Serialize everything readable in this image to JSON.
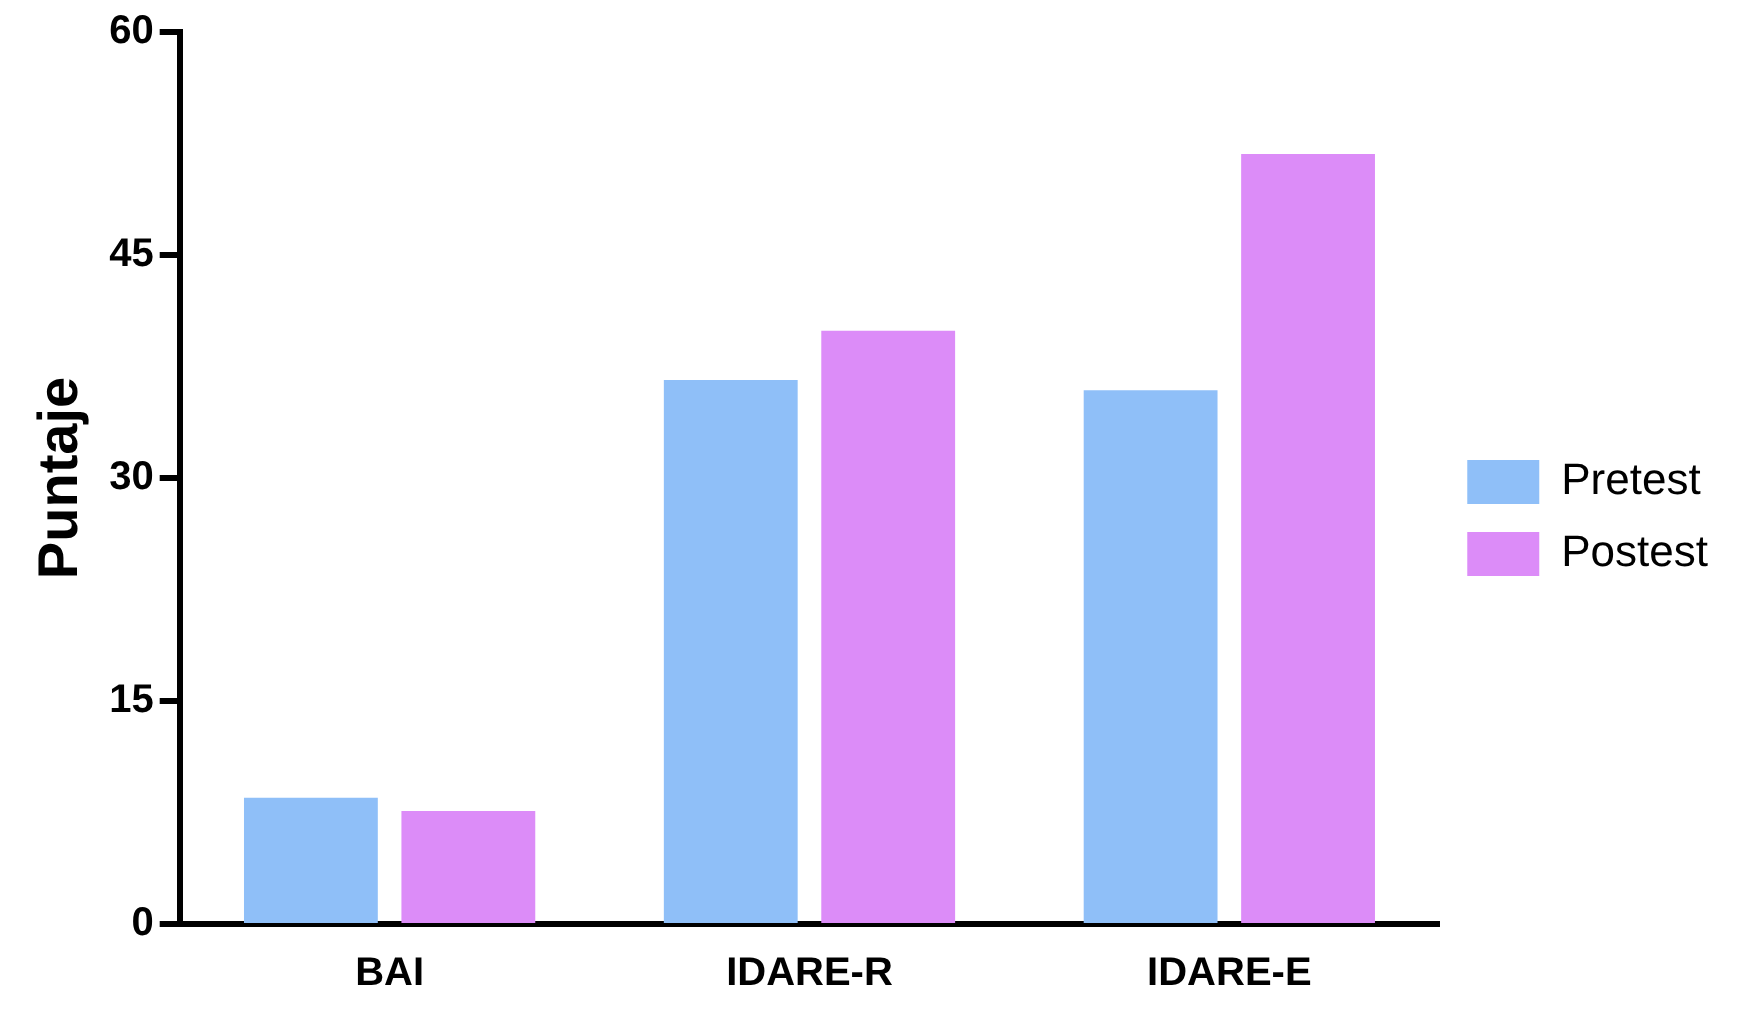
{
  "chart_data": {
    "type": "bar",
    "ylabel": "Puntaje",
    "categories": [
      "BAI",
      "IDARE-R",
      "IDARE-E"
    ],
    "series": [
      {
        "name": "Pretest",
        "color": "#8fbff8",
        "values": [
          8.5,
          36.6,
          35.9
        ]
      },
      {
        "name": "Postest",
        "color": "#dc8cf8",
        "values": [
          7.6,
          39.9,
          51.8
        ]
      }
    ],
    "ylim": [
      0,
      60
    ],
    "yticks": [
      0,
      15,
      30,
      45,
      60
    ],
    "grid": false,
    "legend": "right"
  }
}
